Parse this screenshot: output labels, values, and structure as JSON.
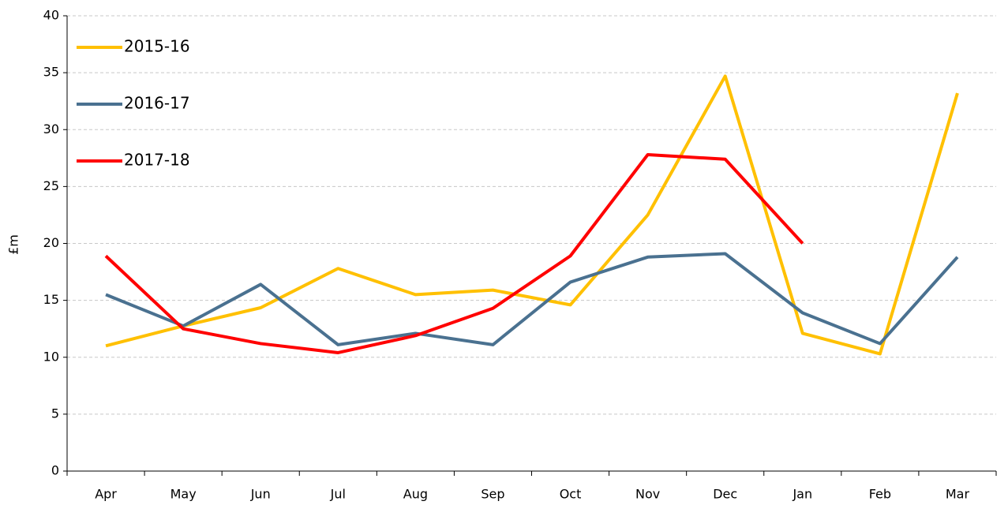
{
  "chart_data": {
    "type": "line",
    "y_label": "£m",
    "categories": [
      "Apr",
      "May",
      "Jun",
      "Jul",
      "Aug",
      "Sep",
      "Oct",
      "Nov",
      "Dec",
      "Jan",
      "Feb",
      "Mar"
    ],
    "series": [
      {
        "name": "2015-16",
        "color": "#ffc000",
        "values": [
          11.0,
          12.75,
          14.35,
          17.8,
          15.5,
          15.9,
          14.6,
          22.5,
          34.7,
          12.1,
          10.3,
          33.2
        ]
      },
      {
        "name": "2016-17",
        "color": "#4a7190",
        "values": [
          15.5,
          12.75,
          16.4,
          11.1,
          12.1,
          11.1,
          16.6,
          18.8,
          19.1,
          13.9,
          11.2,
          18.8
        ]
      },
      {
        "name": "2017-18",
        "color": "#ff0000",
        "values": [
          18.9,
          12.5,
          11.2,
          10.4,
          11.9,
          14.3,
          18.9,
          27.8,
          27.4,
          20.0,
          null,
          null
        ]
      }
    ],
    "ylim": [
      0,
      40
    ],
    "yticks": [
      0,
      5,
      10,
      15,
      20,
      25,
      30,
      35,
      40
    ],
    "grid": true,
    "legend": "top-left"
  }
}
